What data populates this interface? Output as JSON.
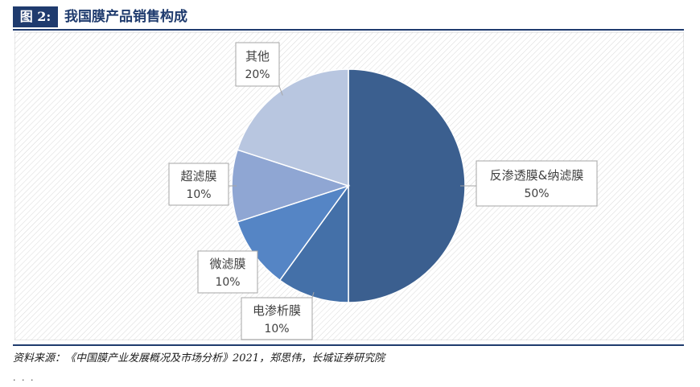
{
  "figure": {
    "label": "图 2:",
    "title": "我国膜产品销售构成",
    "source": "资料来源：《中国膜产业发展概况及市场分析》2021，郑思伟，长城证券研究院",
    "footer_dots": "· · ·"
  },
  "chart_data": {
    "type": "pie",
    "title": "",
    "slices": [
      {
        "label": "反渗透膜&纳滤膜",
        "value": 50,
        "value_label": "50%",
        "color": "#3b5f8f"
      },
      {
        "label": "电渗析膜",
        "value": 10,
        "value_label": "10%",
        "color": "#4470a8"
      },
      {
        "label": "微滤膜",
        "value": 10,
        "value_label": "10%",
        "color": "#5585c5"
      },
      {
        "label": "超滤膜",
        "value": 10,
        "value_label": "10%",
        "color": "#8fa6d3"
      },
      {
        "label": "其他",
        "value": 20,
        "value_label": "20%",
        "color": "#b8c6e0"
      }
    ],
    "start_angle_deg": 0,
    "direction": "clockwise",
    "data_labels": "callouts",
    "colors": {
      "callout_border": "#a6a6a6",
      "label_text": "#404040",
      "background_hatch": "#d9d9d9"
    }
  }
}
